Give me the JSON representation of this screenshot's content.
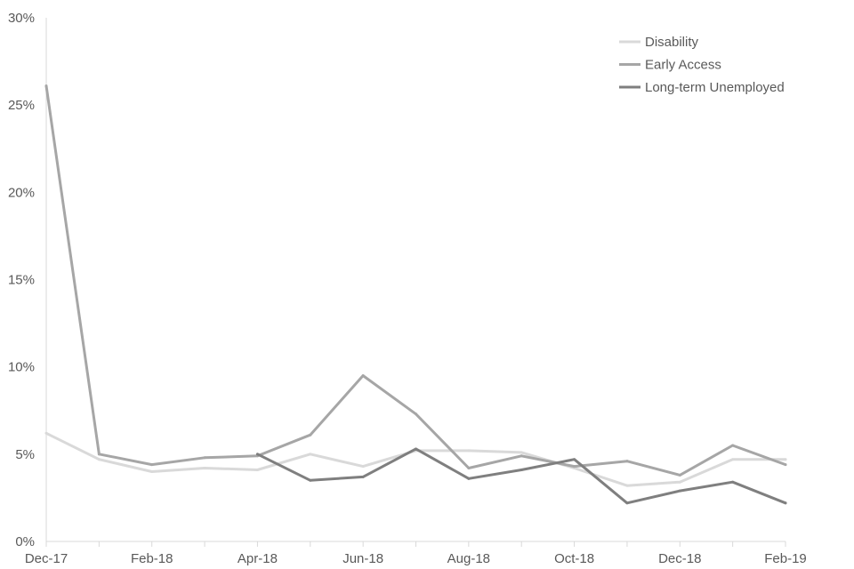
{
  "chart_data": {
    "type": "line",
    "x": [
      "Dec-17",
      "Jan-18",
      "Feb-18",
      "Mar-18",
      "Apr-18",
      "May-18",
      "Jun-18",
      "Jul-18",
      "Aug-18",
      "Sep-18",
      "Oct-18",
      "Nov-18",
      "Dec-18",
      "Jan-19",
      "Feb-19"
    ],
    "x_tick_labels": [
      "Dec-17",
      "",
      "Feb-18",
      "",
      "Apr-18",
      "",
      "Jun-18",
      "",
      "Aug-18",
      "",
      "Oct-18",
      "",
      "Dec-18",
      "",
      "Feb-19"
    ],
    "y_ticks": [
      0,
      5,
      10,
      15,
      20,
      25,
      30
    ],
    "y_tick_labels": [
      "0%",
      "5%",
      "10%",
      "15%",
      "20%",
      "25%",
      "30%"
    ],
    "ylim": [
      0,
      30
    ],
    "y_unit": "%",
    "grid": false,
    "legend_position": "top-right",
    "series": [
      {
        "name": "Disability",
        "color": "#d9d9d9",
        "values": [
          6.2,
          4.7,
          4.0,
          4.2,
          4.1,
          5.0,
          4.3,
          5.2,
          5.2,
          5.1,
          4.2,
          3.2,
          3.4,
          4.7,
          4.7
        ]
      },
      {
        "name": "Early Access",
        "color": "#a6a6a6",
        "values": [
          26.1,
          5.0,
          4.4,
          4.8,
          4.9,
          6.1,
          9.5,
          7.3,
          4.2,
          4.9,
          4.3,
          4.6,
          3.8,
          5.5,
          4.4
        ]
      },
      {
        "name": "Long-term Unemployed",
        "color": "#7f7f7f",
        "values": [
          null,
          null,
          null,
          null,
          5.0,
          3.5,
          3.7,
          5.3,
          3.6,
          4.1,
          4.7,
          2.2,
          2.9,
          3.4,
          2.2
        ]
      }
    ]
  }
}
